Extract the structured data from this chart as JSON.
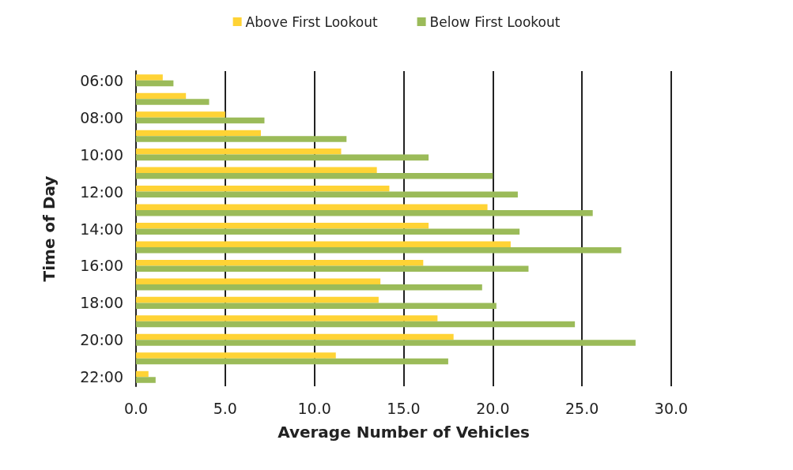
{
  "chart_data": {
    "type": "bar",
    "orientation": "horizontal",
    "xlabel": "Average Number of Vehicles",
    "ylabel": "Time of Day",
    "categories": [
      "06:00",
      null,
      "08:00",
      null,
      "10:00",
      null,
      "12:00",
      null,
      "14:00",
      null,
      "16:00",
      null,
      "18:00",
      null,
      "20:00",
      null,
      "22:00"
    ],
    "series": [
      {
        "name": "Above First Lookout",
        "color": "#ffd335",
        "values": [
          1.5,
          2.8,
          5.0,
          7.0,
          11.5,
          13.5,
          14.2,
          19.7,
          16.4,
          21.0,
          16.1,
          13.7,
          13.6,
          16.9,
          17.8,
          11.2,
          0.7
        ]
      },
      {
        "name": "Below First Lookout",
        "color": "#9bbb59",
        "values": [
          2.1,
          4.1,
          7.2,
          11.8,
          16.4,
          20.0,
          21.4,
          25.6,
          21.5,
          27.2,
          22.0,
          19.4,
          20.2,
          24.6,
          28.0,
          17.5,
          1.1
        ]
      }
    ],
    "xlim": [
      0,
      30
    ],
    "xticks": [
      {
        "value": 0,
        "label": "0.0"
      },
      {
        "value": 5,
        "label": "5.0"
      },
      {
        "value": 10,
        "label": "10.0"
      },
      {
        "value": 15,
        "label": "15.0"
      },
      {
        "value": 20,
        "label": "20.0"
      },
      {
        "value": 25,
        "label": "25.0"
      },
      {
        "value": 30,
        "label": "30.0"
      }
    ],
    "grid": "x",
    "legend": "top"
  }
}
